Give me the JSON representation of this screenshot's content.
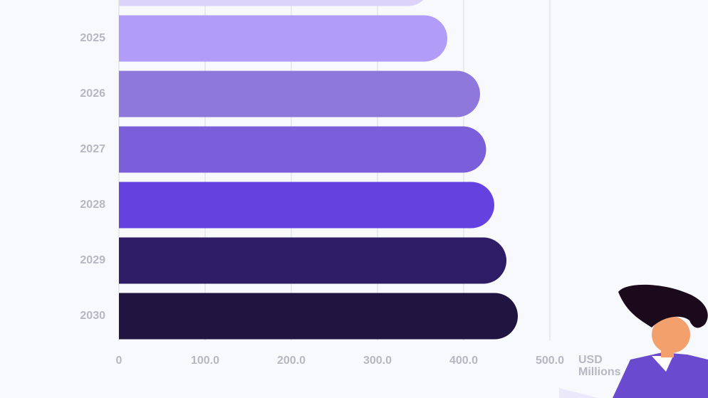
{
  "chart_data": {
    "type": "bar",
    "orientation": "horizontal",
    "x_label": "USD Millions",
    "categories": [
      null,
      "2025",
      "2026",
      "2027",
      "2028",
      "2029",
      "2030"
    ],
    "values": [
      362,
      381,
      419,
      426,
      435.5,
      449.6,
      462.8
    ],
    "colors": [
      "#dcd3fb",
      "#b19cf7",
      "#8f78dc",
      "#7b5ed9",
      "#6542df",
      "#2f1c66",
      "#1f1540"
    ],
    "xlim": [
      0,
      500
    ],
    "xticks": [
      0,
      {
        "value": 100,
        "label": "100.0"
      },
      {
        "value": 200,
        "label": "200.0"
      },
      {
        "value": 300,
        "label": "300.0"
      },
      {
        "value": 400,
        "label": "400.0"
      },
      {
        "value": 500,
        "label": "500.0"
      }
    ],
    "grid": true
  }
}
